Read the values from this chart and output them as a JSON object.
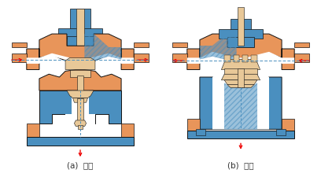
{
  "title_a": "(a)  分流",
  "title_b": "(b)  合流",
  "background_color": "#ffffff",
  "fig_width": 4.08,
  "fig_height": 2.26,
  "dpi": 100,
  "orange": "#E8955A",
  "blue": "#4A8FBF",
  "light_orange": "#E8C898",
  "white": "#ffffff",
  "red": "#EE0000",
  "dark": "#111111",
  "label_fontsize": 7.5,
  "label_color": "#333333"
}
